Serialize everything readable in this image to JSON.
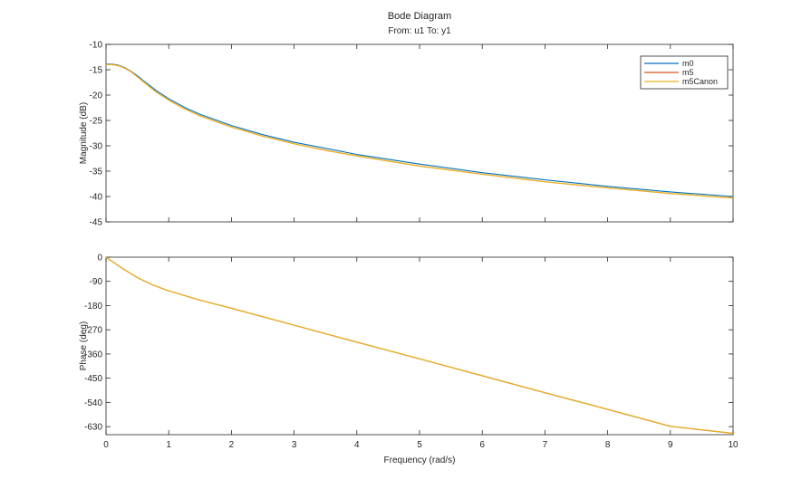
{
  "chart_data": {
    "type": "line",
    "title": "Bode Diagram",
    "subtitle": "From: u1  To: y1",
    "xlabel": "Frequency (rad/s)",
    "xlim": [
      0,
      10
    ],
    "xticks": [
      0,
      1,
      2,
      3,
      4,
      5,
      6,
      7,
      8,
      9,
      10
    ],
    "grid": false,
    "legend": {
      "position": "top-right",
      "entries": [
        "m0",
        "m5",
        "m5Canon"
      ]
    },
    "colors": {
      "m0": "#0072bd",
      "m5": "#d95319",
      "m5Canon": "#edb120"
    },
    "magnitude": {
      "ylabel": "Magnitude (dB)",
      "ylim": [
        -45,
        -10
      ],
      "yticks": [
        -10,
        -15,
        -20,
        -25,
        -30,
        -35,
        -40,
        -45
      ],
      "x": [
        0,
        0.1,
        0.2,
        0.3,
        0.4,
        0.5,
        0.6,
        0.8,
        1.0,
        1.25,
        1.5,
        2.0,
        2.5,
        3.0,
        3.5,
        4.0,
        5.0,
        6.0,
        7.0,
        8.0,
        9.0,
        10.0
      ],
      "series": [
        {
          "name": "m0",
          "values": [
            -13.9,
            -13.9,
            -14.1,
            -14.6,
            -15.3,
            -16.2,
            -17.2,
            -19.1,
            -20.7,
            -22.4,
            -23.8,
            -26.0,
            -27.8,
            -29.3,
            -30.5,
            -31.7,
            -33.6,
            -35.3,
            -36.7,
            -38.0,
            -39.1,
            -40.0
          ]
        },
        {
          "name": "m5",
          "values": [
            -14.0,
            -14.0,
            -14.2,
            -14.7,
            -15.4,
            -16.4,
            -17.4,
            -19.4,
            -21.0,
            -22.7,
            -24.1,
            -26.3,
            -28.1,
            -29.6,
            -30.9,
            -32.0,
            -34.0,
            -35.6,
            -37.1,
            -38.3,
            -39.4,
            -40.3
          ]
        },
        {
          "name": "m5Canon",
          "values": [
            -14.0,
            -14.0,
            -14.2,
            -14.7,
            -15.4,
            -16.4,
            -17.4,
            -19.4,
            -21.0,
            -22.7,
            -24.1,
            -26.3,
            -28.1,
            -29.6,
            -30.9,
            -32.0,
            -34.0,
            -35.6,
            -37.1,
            -38.3,
            -39.4,
            -40.3
          ]
        }
      ]
    },
    "phase": {
      "ylabel": "Phase (deg)",
      "ylim": [
        -660,
        0
      ],
      "yticks": [
        0,
        -90,
        -180,
        -270,
        -360,
        -450,
        -540,
        -630
      ],
      "x": [
        0,
        0.25,
        0.5,
        0.75,
        1.0,
        1.5,
        2.0,
        3.0,
        4.0,
        5.0,
        6.0,
        7.0,
        8.0,
        9.0,
        10.0
      ],
      "series": [
        {
          "name": "m0",
          "values": [
            0,
            -40,
            -76,
            -104,
            -125,
            -160,
            -190,
            -253,
            -316,
            -378,
            -441,
            -504,
            -566,
            -629,
            -655
          ]
        },
        {
          "name": "m5",
          "values": [
            0,
            -40,
            -76,
            -104,
            -125,
            -160,
            -190,
            -253,
            -316,
            -378,
            -441,
            -504,
            -566,
            -629,
            -655
          ]
        },
        {
          "name": "m5Canon",
          "values": [
            0,
            -40,
            -76,
            -104,
            -125,
            -160,
            -190,
            -253,
            -316,
            -378,
            -441,
            -504,
            -566,
            -629,
            -655
          ]
        }
      ]
    }
  }
}
